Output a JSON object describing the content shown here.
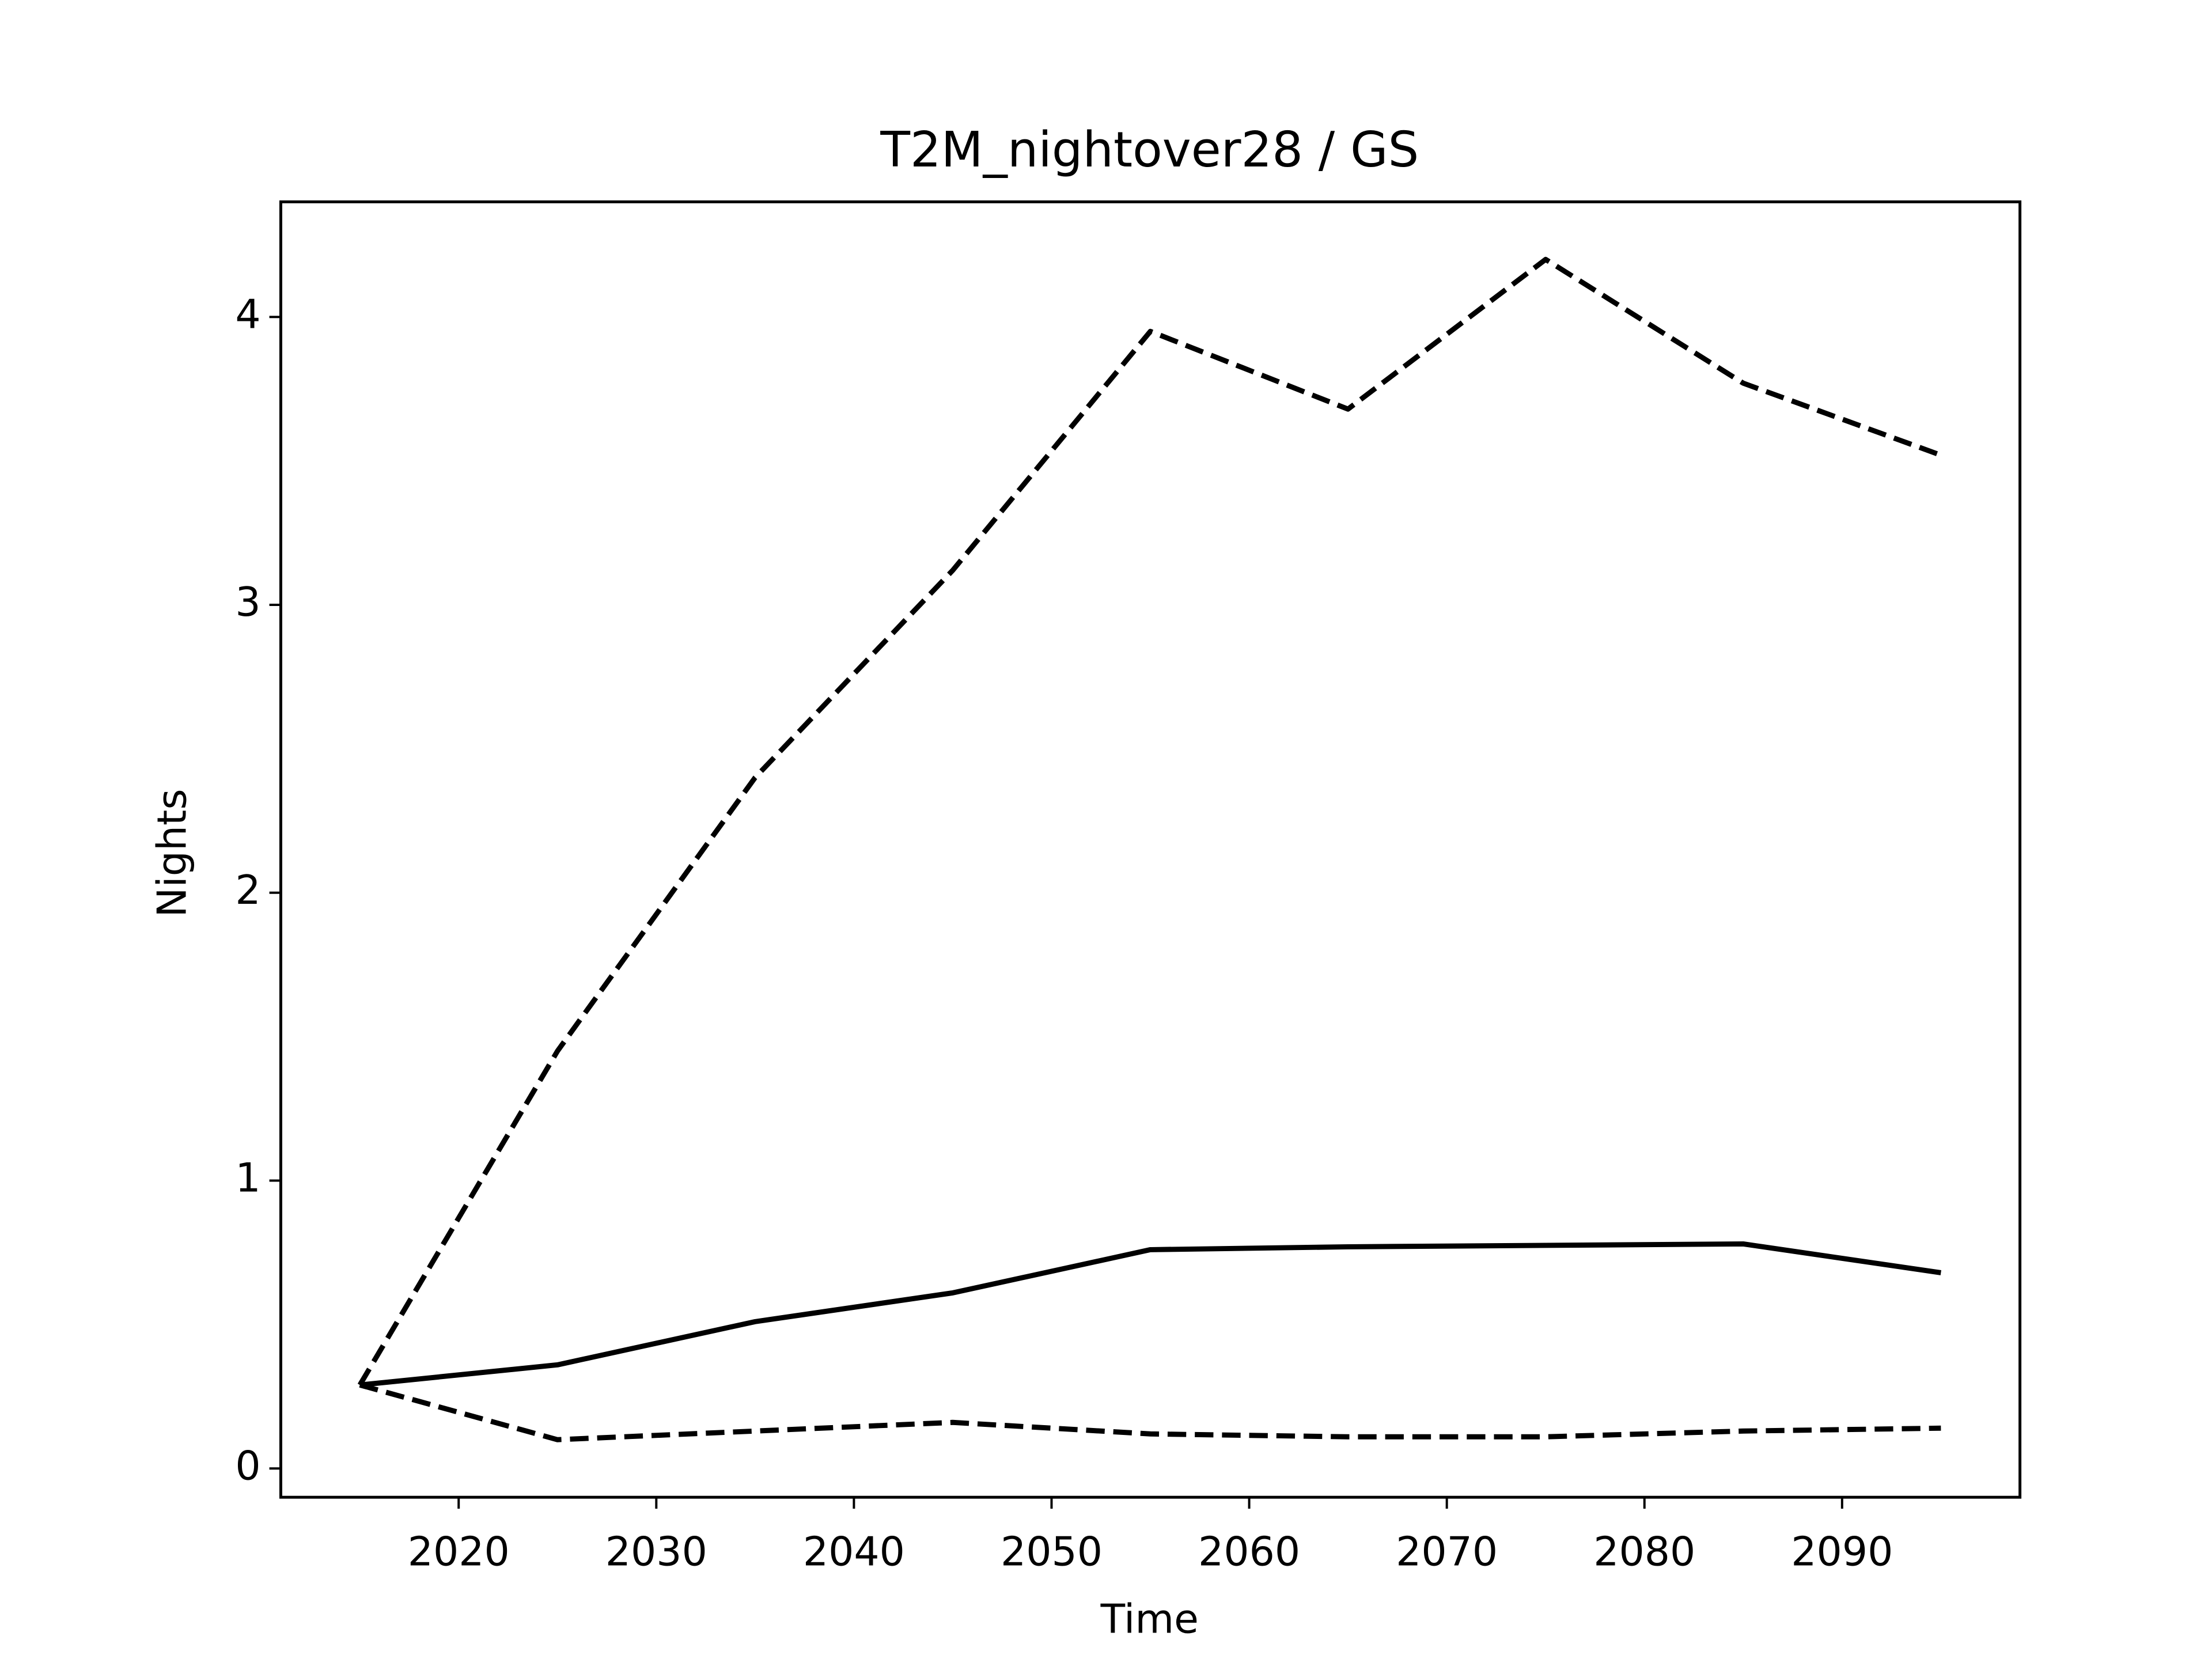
{
  "chart_data": {
    "type": "line",
    "title": "T2M_nightover28 / GS",
    "x_label": "Time",
    "y_label": "Nights",
    "x": [
      2015,
      2025,
      2035,
      2045,
      2055,
      2065,
      2075,
      2085,
      2095
    ],
    "series": [
      {
        "color": "#000000",
        "style": "solid",
        "values": [
          0.29,
          0.36,
          0.51,
          0.61,
          0.76,
          0.77,
          0.775,
          0.78,
          0.68
        ]
      },
      {
        "color": "#000000",
        "style": "dashed",
        "values": [
          0.29,
          1.45,
          2.4,
          3.12,
          3.95,
          3.68,
          4.2,
          3.77,
          3.52
        ]
      },
      {
        "color": "#000000",
        "style": "dashed",
        "values": [
          0.29,
          0.1,
          0.13,
          0.16,
          0.12,
          0.11,
          0.11,
          0.13,
          0.14
        ]
      }
    ],
    "xlim": [
      2011,
      2099
    ],
    "xticks": [
      2020,
      2030,
      2040,
      2050,
      2060,
      2070,
      2080,
      2090
    ],
    "ylim": [
      -0.1,
      4.4
    ],
    "yticks": [
      0,
      1,
      2,
      3,
      4
    ],
    "grid": false
  }
}
